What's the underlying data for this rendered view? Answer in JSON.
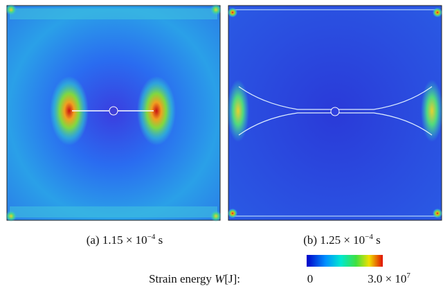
{
  "panels": [
    {
      "label": "(a)",
      "base": "1.15 × 10",
      "exponent": "−4",
      "unit": "s"
    },
    {
      "label": "(b)",
      "base": "1.25 × 10",
      "exponent": "−4",
      "unit": "s"
    }
  ],
  "colorbar": {
    "title": "Strain energy",
    "symbol": "W",
    "unit": "[J]:",
    "min": "0",
    "max_base": "3.0 × 10",
    "max_exponent": "7"
  }
}
